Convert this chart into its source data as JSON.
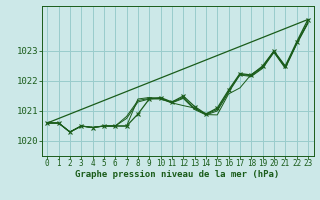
{
  "xlabel": "Graphe pression niveau de la mer (hPa)",
  "bg_color": "#cce8e8",
  "grid_color": "#99cccc",
  "line_color": "#1a5c1a",
  "xlim": [
    -0.5,
    23.5
  ],
  "ylim": [
    1019.5,
    1024.5
  ],
  "yticks": [
    1020,
    1021,
    1022,
    1023
  ],
  "xticks": [
    0,
    1,
    2,
    3,
    4,
    5,
    6,
    7,
    8,
    9,
    10,
    11,
    12,
    13,
    14,
    15,
    16,
    17,
    18,
    19,
    20,
    21,
    22,
    23
  ],
  "series_main": [
    1020.6,
    1020.6,
    1020.3,
    1020.5,
    1020.45,
    1020.5,
    1020.5,
    1020.5,
    1020.9,
    1021.4,
    1021.45,
    1021.3,
    1021.5,
    1021.15,
    1020.9,
    1021.1,
    1021.7,
    1022.25,
    1022.2,
    1022.5,
    1023.0,
    1022.5,
    1023.3,
    1024.05
  ],
  "series_b": [
    1020.6,
    1020.6,
    1020.3,
    1020.5,
    1020.45,
    1020.5,
    1020.5,
    1020.75,
    1021.3,
    1021.4,
    1021.4,
    1021.27,
    1021.42,
    1021.05,
    1020.87,
    1021.0,
    1021.62,
    1022.2,
    1022.15,
    1022.42,
    1022.95,
    1022.42,
    1023.22,
    1023.92
  ],
  "series_c": [
    1020.6,
    1020.6,
    1020.3,
    1020.5,
    1020.45,
    1020.5,
    1020.5,
    1020.82,
    1021.35,
    1021.42,
    1021.42,
    1021.29,
    1021.45,
    1021.08,
    1020.89,
    1021.05,
    1021.65,
    1022.23,
    1022.17,
    1022.45,
    1022.97,
    1022.45,
    1023.25,
    1023.95
  ],
  "series_d": [
    1020.6,
    1020.6,
    1020.3,
    1020.5,
    1020.45,
    1020.5,
    1020.5,
    1020.5,
    1021.4,
    1021.45,
    1021.42,
    1021.27,
    1021.18,
    1021.1,
    1020.88,
    1020.87,
    1021.57,
    1021.77,
    1022.22,
    1022.47,
    1023.0,
    1022.47,
    1023.25,
    1023.95
  ]
}
